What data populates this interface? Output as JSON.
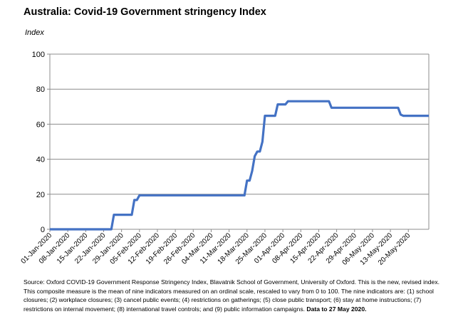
{
  "chart_data": {
    "type": "line",
    "title": "Australia: Covid-19 Government stringency Index",
    "ylabel": "Index",
    "xlabel": "",
    "ylim": [
      0,
      100
    ],
    "yticks": [
      0,
      20,
      40,
      60,
      80,
      100
    ],
    "grid": true,
    "x_tick_labels": [
      "01-Jan-2020",
      "08-Jan-2020",
      "15-Jan-2020",
      "22-Jan-2020",
      "29-Jan-2020",
      "05-Feb-2020",
      "12-Feb-2020",
      "19-Feb-2020",
      "26-Feb-2020",
      "04-Mar-2020",
      "11-Mar-2020",
      "18-Mar-2020",
      "25-Mar-2020",
      "01-Apr-2020",
      "08-Apr-2020",
      "15-Apr-2020",
      "22-Apr-2020",
      "29-Apr-2020",
      "06-May-2020",
      "13-May-2020",
      "20-May-2020"
    ],
    "x_range_days": [
      0,
      148
    ],
    "series": [
      {
        "name": "Stringency Index",
        "color": "#4472C4",
        "day": [
          0,
          24,
          25,
          32,
          33,
          34,
          35,
          76,
          77,
          78,
          79,
          80,
          81,
          82,
          83,
          84,
          85,
          88,
          89,
          92,
          93,
          95,
          96,
          109,
          110,
          136,
          137,
          138,
          148
        ],
        "values": [
          0,
          0,
          8.3,
          8.3,
          16.7,
          16.7,
          19.4,
          19.4,
          27.8,
          27.8,
          33.3,
          41.7,
          44.4,
          44.4,
          50,
          64.8,
          64.8,
          64.8,
          71.3,
          71.3,
          73.1,
          73.1,
          73.1,
          73.1,
          69.4,
          69.4,
          65.5,
          64.8,
          64.8
        ]
      }
    ]
  },
  "source_text": {
    "lead": "Source: Oxford COVID-19 Government Response Stringency Index, Blavatnik School of Government, University of Oxford.  This is the new, revised index.  This composite measure is the mean of nine indicators measured on an ordinal scale, rescaled to vary from 0 to 100.   The nine indicators are: (1) school closures; (2) workplace closures; (3) cancel public events; (4) restrictions on gatherings; (5) close public transport; (6) stay at home instructions; (7) restrictions on internal movement; (8) international travel controls; and (9) public information campaigns. ",
    "bold": "Data to 27 May 2020."
  }
}
